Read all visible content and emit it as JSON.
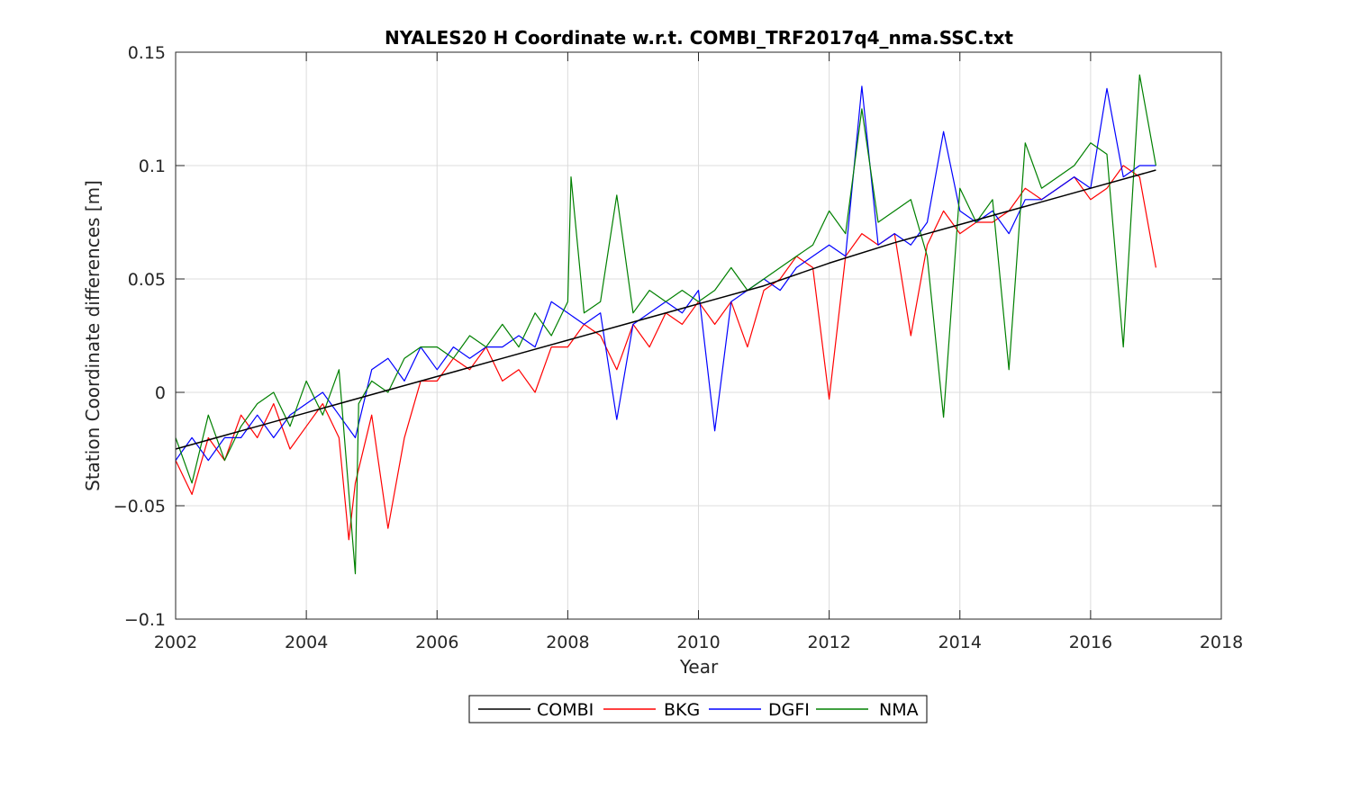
{
  "chart_data": {
    "type": "line",
    "title": "NYALES20 H Coordinate w.r.t. COMBI_TRF2017q4_nma.SSC.txt",
    "xlabel": "Year",
    "ylabel": "Station Coordinate differences [m]",
    "xlim": [
      2002,
      2018
    ],
    "ylim": [
      -0.1,
      0.15
    ],
    "xticks": [
      2002,
      2004,
      2006,
      2008,
      2010,
      2012,
      2014,
      2016,
      2018
    ],
    "xtick_labels": [
      "2002",
      "2004",
      "2006",
      "2008",
      "2010",
      "2012",
      "2014",
      "2016",
      "2018"
    ],
    "yticks": [
      -0.1,
      -0.05,
      0,
      0.05,
      0.1,
      0.15
    ],
    "ytick_labels": [
      "−0.1",
      "−0.05",
      "0",
      "0.05",
      "0.1",
      "0.15"
    ],
    "grid": true,
    "legend_position": "bottom-outside",
    "series": [
      {
        "name": "COMBI",
        "color": "#000000",
        "x": [
          2002.0,
          2003.0,
          2004.0,
          2005.0,
          2006.0,
          2007.0,
          2008.0,
          2009.0,
          2010.0,
          2011.0,
          2012.0,
          2013.0,
          2014.0,
          2015.0,
          2016.0,
          2017.0
        ],
        "y": [
          -0.025,
          -0.017,
          -0.009,
          -0.001,
          0.007,
          0.015,
          0.023,
          0.031,
          0.039,
          0.047,
          0.057,
          0.066,
          0.074,
          0.082,
          0.09,
          0.098
        ]
      },
      {
        "name": "BKG",
        "color": "#ff0000",
        "x": [
          2002.0,
          2002.25,
          2002.5,
          2002.75,
          2003.0,
          2003.25,
          2003.5,
          2003.75,
          2004.0,
          2004.25,
          2004.5,
          2004.65,
          2004.75,
          2005.0,
          2005.25,
          2005.5,
          2005.75,
          2006.0,
          2006.25,
          2006.5,
          2006.75,
          2007.0,
          2007.25,
          2007.5,
          2007.75,
          2008.0,
          2008.25,
          2008.5,
          2008.75,
          2009.0,
          2009.25,
          2009.5,
          2009.75,
          2010.0,
          2010.25,
          2010.5,
          2010.75,
          2011.0,
          2011.25,
          2011.5,
          2011.75,
          2012.0,
          2012.25,
          2012.5,
          2012.75,
          2013.0,
          2013.25,
          2013.5,
          2013.75,
          2014.0,
          2014.25,
          2014.5,
          2014.75,
          2015.0,
          2015.25,
          2015.5,
          2015.75,
          2016.0,
          2016.25,
          2016.5,
          2016.75,
          2017.0
        ],
        "y": [
          -0.03,
          -0.045,
          -0.02,
          -0.03,
          -0.01,
          -0.02,
          -0.005,
          -0.025,
          -0.015,
          -0.005,
          -0.02,
          -0.065,
          -0.04,
          -0.01,
          -0.06,
          -0.02,
          0.005,
          0.005,
          0.015,
          0.01,
          0.02,
          0.005,
          0.01,
          0.0,
          0.02,
          0.02,
          0.03,
          0.025,
          0.01,
          0.03,
          0.02,
          0.035,
          0.03,
          0.04,
          0.03,
          0.04,
          0.02,
          0.045,
          0.05,
          0.06,
          0.055,
          -0.003,
          0.06,
          0.07,
          0.065,
          0.07,
          0.025,
          0.065,
          0.08,
          0.07,
          0.075,
          0.075,
          0.08,
          0.09,
          0.085,
          0.09,
          0.095,
          0.085,
          0.09,
          0.1,
          0.095,
          0.055
        ]
      },
      {
        "name": "DGFI",
        "color": "#0000ff",
        "x": [
          2002.0,
          2002.25,
          2002.5,
          2002.75,
          2003.0,
          2003.25,
          2003.5,
          2003.75,
          2004.0,
          2004.25,
          2004.5,
          2004.75,
          2005.0,
          2005.25,
          2005.5,
          2005.75,
          2006.0,
          2006.25,
          2006.5,
          2006.75,
          2007.0,
          2007.25,
          2007.5,
          2007.75,
          2008.0,
          2008.25,
          2008.5,
          2008.75,
          2009.0,
          2009.25,
          2009.5,
          2009.75,
          2010.0,
          2010.25,
          2010.5,
          2010.75,
          2011.0,
          2011.25,
          2011.5,
          2011.75,
          2012.0,
          2012.25,
          2012.5,
          2012.75,
          2013.0,
          2013.25,
          2013.5,
          2013.75,
          2014.0,
          2014.25,
          2014.5,
          2014.75,
          2015.0,
          2015.25,
          2015.5,
          2015.75,
          2016.0,
          2016.25,
          2016.5,
          2016.75,
          2017.0
        ],
        "y": [
          -0.03,
          -0.02,
          -0.03,
          -0.02,
          -0.02,
          -0.01,
          -0.02,
          -0.01,
          -0.005,
          0.0,
          -0.01,
          -0.02,
          0.01,
          0.015,
          0.005,
          0.02,
          0.01,
          0.02,
          0.015,
          0.02,
          0.02,
          0.025,
          0.02,
          0.04,
          0.035,
          0.03,
          0.035,
          -0.012,
          0.03,
          0.035,
          0.04,
          0.035,
          0.045,
          -0.017,
          0.04,
          0.045,
          0.05,
          0.045,
          0.055,
          0.06,
          0.065,
          0.06,
          0.135,
          0.065,
          0.07,
          0.065,
          0.075,
          0.115,
          0.08,
          0.075,
          0.08,
          0.07,
          0.085,
          0.085,
          0.09,
          0.095,
          0.09,
          0.134,
          0.095,
          0.1,
          0.1
        ]
      },
      {
        "name": "NMA",
        "color": "#008000",
        "x": [
          2002.0,
          2002.25,
          2002.5,
          2002.75,
          2003.0,
          2003.25,
          2003.5,
          2003.75,
          2004.0,
          2004.25,
          2004.5,
          2004.75,
          2004.8,
          2005.0,
          2005.25,
          2005.5,
          2005.75,
          2006.0,
          2006.25,
          2006.5,
          2006.75,
          2007.0,
          2007.25,
          2007.5,
          2007.75,
          2008.0,
          2008.05,
          2008.25,
          2008.5,
          2008.75,
          2009.0,
          2009.25,
          2009.5,
          2009.75,
          2010.0,
          2010.25,
          2010.5,
          2010.75,
          2011.0,
          2011.25,
          2011.5,
          2011.75,
          2012.0,
          2012.25,
          2012.5,
          2012.75,
          2013.0,
          2013.25,
          2013.5,
          2013.75,
          2014.0,
          2014.25,
          2014.5,
          2014.75,
          2015.0,
          2015.25,
          2015.5,
          2015.75,
          2016.0,
          2016.25,
          2016.5,
          2016.75,
          2017.0
        ],
        "y": [
          -0.02,
          -0.04,
          -0.01,
          -0.03,
          -0.015,
          -0.005,
          0.0,
          -0.015,
          0.005,
          -0.01,
          0.01,
          -0.08,
          -0.005,
          0.005,
          0.0,
          0.015,
          0.02,
          0.02,
          0.015,
          0.025,
          0.02,
          0.03,
          0.02,
          0.035,
          0.025,
          0.04,
          0.095,
          0.035,
          0.04,
          0.087,
          0.035,
          0.045,
          0.04,
          0.045,
          0.04,
          0.045,
          0.055,
          0.045,
          0.05,
          0.055,
          0.06,
          0.065,
          0.08,
          0.07,
          0.125,
          0.075,
          0.08,
          0.085,
          0.06,
          -0.011,
          0.09,
          0.075,
          0.085,
          0.01,
          0.11,
          0.09,
          0.095,
          0.1,
          0.11,
          0.105,
          0.02,
          0.14,
          0.1
        ]
      }
    ]
  }
}
